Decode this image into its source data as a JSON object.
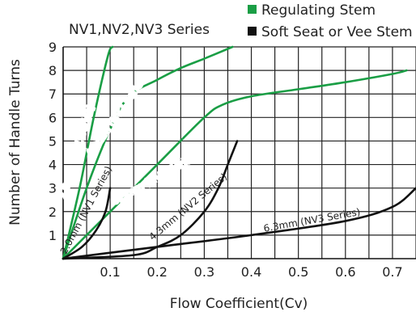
{
  "chart_data": {
    "type": "line",
    "title": "NV1,NV2,NV3 Series",
    "xlabel": "Flow Coefficient(Cv)",
    "ylabel": "Number of Handle Turns",
    "xlim": [
      0,
      0.75
    ],
    "ylim": [
      0,
      9
    ],
    "x_ticks": [
      "0.1",
      "0.2",
      "0.3",
      "0.4",
      "0.5",
      "0.6",
      "0.7"
    ],
    "y_ticks": [
      "1",
      "2",
      "3",
      "4",
      "5",
      "6",
      "7",
      "8",
      "9"
    ],
    "grid": "x-and-y",
    "legend": {
      "placement": "top-right",
      "entries": [
        {
          "label": "Regulating Stem",
          "color": "#1a9e45",
          "text_color": "#1a9e45"
        },
        {
          "label": "Soft Seat or Vee Stem",
          "color": "#111111",
          "text_color": "#111111"
        }
      ]
    },
    "series": [
      {
        "name": "2.0mm (NV1 Series)",
        "group": "Regulating Stem",
        "color": "#1a9e45",
        "points": [
          [
            0,
            0
          ],
          [
            0.035,
            3
          ],
          [
            0.065,
            6
          ],
          [
            0.095,
            8.6
          ],
          [
            0.105,
            9
          ]
        ]
      },
      {
        "name": "4.3mm (NV2 Series)",
        "group": "Regulating Stem",
        "color": "#1a9e45",
        "points": [
          [
            0,
            0
          ],
          [
            0.05,
            3
          ],
          [
            0.1,
            5.5
          ],
          [
            0.14,
            6.9
          ],
          [
            0.2,
            7.6
          ],
          [
            0.25,
            8.1
          ],
          [
            0.3,
            8.5
          ],
          [
            0.36,
            9
          ]
        ]
      },
      {
        "name": "6.3mm (NV3 Series)",
        "group": "Regulating Stem",
        "color": "#1a9e45",
        "points": [
          [
            0,
            0
          ],
          [
            0.1,
            2
          ],
          [
            0.2,
            4
          ],
          [
            0.3,
            6
          ],
          [
            0.34,
            6.55
          ],
          [
            0.4,
            6.9
          ],
          [
            0.5,
            7.2
          ],
          [
            0.6,
            7.5
          ],
          [
            0.7,
            7.85
          ],
          [
            0.73,
            8
          ]
        ]
      },
      {
        "name": "2.0mm (NV1 Series)",
        "group": "Soft Seat or Vee Stem",
        "color": "#111111",
        "points": [
          [
            0,
            0
          ],
          [
            0.04,
            0.5
          ],
          [
            0.07,
            1.2
          ],
          [
            0.09,
            2
          ],
          [
            0.1,
            3
          ]
        ]
      },
      {
        "name": "4.3mm (NV2 Series)",
        "group": "Soft Seat or Vee Stem",
        "color": "#111111",
        "points": [
          [
            0,
            0
          ],
          [
            0.15,
            0.15
          ],
          [
            0.2,
            0.5
          ],
          [
            0.25,
            1
          ],
          [
            0.3,
            2
          ],
          [
            0.33,
            3
          ],
          [
            0.35,
            4
          ],
          [
            0.37,
            5
          ]
        ]
      },
      {
        "name": "6.3mm (NV3 Series)",
        "group": "Soft Seat or Vee Stem",
        "color": "#111111",
        "points": [
          [
            0,
            0
          ],
          [
            0.2,
            0.5
          ],
          [
            0.4,
            1
          ],
          [
            0.6,
            1.6
          ],
          [
            0.7,
            2.2
          ],
          [
            0.75,
            3
          ]
        ]
      }
    ],
    "curve_labels": [
      {
        "text": "2.0mm (NV1 Series)",
        "at": [
          0.035,
          4.5
        ],
        "angle": -73,
        "style": "white"
      },
      {
        "text": "4.3mm (NV2 Series)",
        "at": [
          0.12,
          6.0
        ],
        "angle": -55,
        "style": "white"
      },
      {
        "text": "6.3mm (NV3 Series)",
        "at": [
          0.2,
          3.3
        ],
        "angle": -29,
        "style": "white"
      },
      {
        "text": "2.0mm (NV1 Series)",
        "at": [
          0.055,
          2.0
        ],
        "angle": -62,
        "style": "dark"
      },
      {
        "text": "4.3mm (NV2 Series)",
        "at": [
          0.27,
          2.1
        ],
        "angle": -40,
        "style": "dark"
      },
      {
        "text": "6.3mm (NV3 Series)",
        "at": [
          0.53,
          1.5
        ],
        "angle": -10,
        "style": "dark"
      }
    ]
  }
}
